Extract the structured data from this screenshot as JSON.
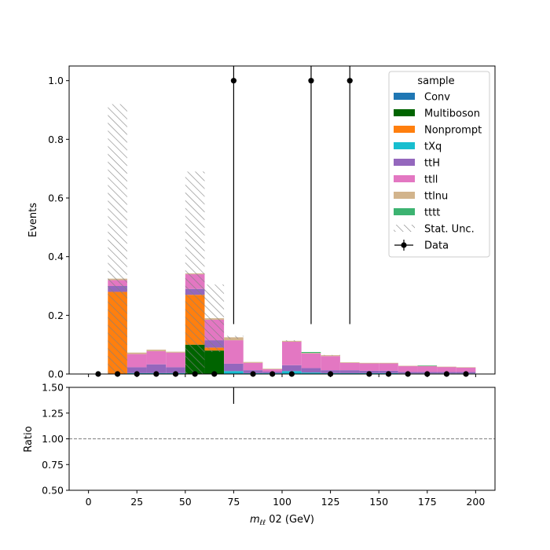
{
  "chart_data": {
    "type": "bar",
    "stacked": true,
    "x_edges": [
      0,
      10,
      20,
      30,
      40,
      50,
      60,
      70,
      80,
      90,
      100,
      110,
      120,
      130,
      140,
      150,
      160,
      170,
      180,
      190,
      200
    ],
    "xlabel_italic": "m",
    "xlabel_sub": "ℓℓ",
    "xlabel_rest": " 02 (GeV)",
    "ylabel": "Events",
    "ylim": [
      0,
      1.05
    ],
    "yticks": [
      "0.0",
      "0.2",
      "0.4",
      "0.6",
      "0.8",
      "1.0"
    ],
    "ytick_values": [
      0,
      0.2,
      0.4,
      0.6,
      0.8,
      1.0
    ],
    "xticks": [
      "0",
      "25",
      "50",
      "75",
      "100",
      "125",
      "150",
      "175",
      "200"
    ],
    "xtick_values": [
      0,
      25,
      50,
      75,
      100,
      125,
      150,
      175,
      200
    ],
    "xlim": [
      -10,
      210
    ],
    "series": [
      {
        "name": "Conv",
        "color": "#1f77b4",
        "values": [
          0,
          0,
          0,
          0,
          0,
          0,
          0,
          0,
          0,
          0,
          0,
          0,
          0,
          0,
          0,
          0,
          0,
          0,
          0,
          0
        ]
      },
      {
        "name": "Multiboson",
        "color": "#006400",
        "values": [
          0,
          0,
          0,
          0,
          0,
          0.1,
          0.08,
          0,
          0,
          0,
          0,
          0,
          0,
          0,
          0,
          0,
          0,
          0,
          0,
          0
        ]
      },
      {
        "name": "Nonprompt",
        "color": "#ff7f0e",
        "values": [
          0,
          0.28,
          0,
          0,
          0,
          0.17,
          0.01,
          0,
          0,
          0,
          0,
          0,
          0,
          0,
          0,
          0,
          0,
          0,
          0,
          0
        ]
      },
      {
        "name": "tXq",
        "color": "#17becf",
        "values": [
          0,
          0,
          0.003,
          0.003,
          0.003,
          0,
          0,
          0.01,
          0.003,
          0.003,
          0.01,
          0.005,
          0.003,
          0.003,
          0.003,
          0.003,
          0.002,
          0.002,
          0.002,
          0.002
        ]
      },
      {
        "name": "ttH",
        "color": "#9467bd",
        "values": [
          0,
          0.02,
          0.02,
          0.03,
          0.02,
          0.02,
          0.025,
          0.025,
          0.01,
          0.005,
          0.02,
          0.015,
          0.01,
          0.01,
          0.008,
          0.008,
          0.005,
          0.005,
          0.005,
          0.005
        ]
      },
      {
        "name": "ttll",
        "color": "#e377c2",
        "values": [
          0,
          0.02,
          0.045,
          0.045,
          0.05,
          0.05,
          0.07,
          0.08,
          0.025,
          0.008,
          0.08,
          0.05,
          0.048,
          0.025,
          0.025,
          0.025,
          0.02,
          0.02,
          0.017,
          0.015
        ]
      },
      {
        "name": "ttlnu",
        "color": "#d2b48c",
        "values": [
          0,
          0.005,
          0.005,
          0.005,
          0.003,
          0.003,
          0.005,
          0.01,
          0.003,
          0.002,
          0.003,
          0.002,
          0.003,
          0.002,
          0.002,
          0.002,
          0.001,
          0.001,
          0.001,
          0.001
        ]
      },
      {
        "name": "tttt",
        "color": "#3cb371",
        "values": [
          0,
          0,
          0,
          0,
          0,
          0,
          0,
          0,
          0,
          0,
          0,
          0.003,
          0,
          0,
          0,
          0,
          0,
          0.001,
          0,
          0
        ]
      }
    ],
    "stat_unc": [
      0,
      0.92,
      0.07,
      0.08,
      0.075,
      0.69,
      0.305,
      0.13,
      0.04,
      0.018,
      0.115,
      0.075,
      0.065,
      0.04,
      0.037,
      0.037,
      0.028,
      0.028,
      0.025,
      0.023
    ],
    "data_points": {
      "x": [
        5,
        15,
        25,
        35,
        45,
        55,
        65,
        75,
        85,
        95,
        105,
        115,
        125,
        135,
        145,
        155,
        165,
        175,
        185,
        195
      ],
      "y": [
        0,
        0,
        0,
        0,
        0,
        0,
        0,
        1,
        0,
        0,
        0,
        1,
        0,
        1,
        0,
        0,
        0,
        0,
        0,
        0
      ]
    },
    "legend": {
      "title": "sample",
      "placement": "top-right",
      "entries": [
        "Conv",
        "Multiboson",
        "Nonprompt",
        "tXq",
        "ttH",
        "ttll",
        "ttlnu",
        "tttt",
        "Stat. Unc.",
        "Data"
      ]
    },
    "ratio": {
      "ylabel": "Ratio",
      "ylim": [
        0.5,
        1.5
      ],
      "yticks": [
        "0.50",
        "0.75",
        "1.00",
        "1.25",
        "1.50"
      ],
      "ytick_values": [
        0.5,
        0.75,
        1.0,
        1.25,
        1.5
      ],
      "reference": 1.0
    }
  }
}
